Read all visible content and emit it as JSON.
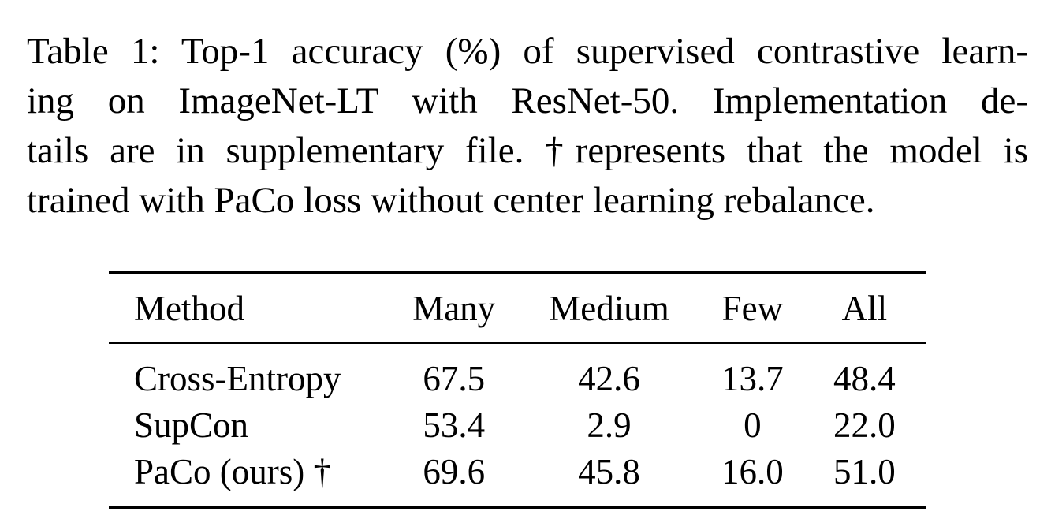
{
  "caption": {
    "lines": [
      "Table 1: Top-1 accuracy (%) of supervised contrastive learn-",
      "ing on ImageNet-LT with ResNet-50.  Implementation de-",
      "tails are in supplementary file. †represents that the model is",
      "trained with PaCo loss without center learning rebalance."
    ]
  },
  "table": {
    "headers": [
      "Method",
      "Many",
      "Medium",
      "Few",
      "All"
    ],
    "rows": [
      [
        "Cross-Entropy",
        "67.5",
        "42.6",
        "13.7",
        "48.4"
      ],
      [
        "SupCon",
        "53.4",
        "2.9",
        "0",
        "22.0"
      ],
      [
        "PaCo (ours) †",
        "69.6",
        "45.8",
        "16.0",
        "51.0"
      ]
    ]
  }
}
